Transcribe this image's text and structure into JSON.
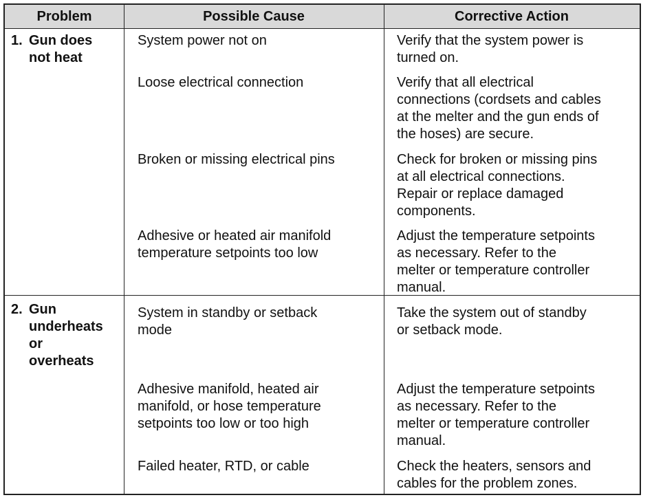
{
  "table": {
    "header": [
      "Problem",
      "Possible Cause",
      "Corrective Action"
    ],
    "rows": [
      {
        "number": "1.",
        "problem": [
          "Gun does",
          "not heat"
        ],
        "entries": [
          {
            "cause": [
              "System power not on"
            ],
            "action": [
              "Verify that the system power is",
              "turned on."
            ]
          },
          {
            "cause": [
              "Loose electrical connection"
            ],
            "action": [
              "Verify that all electrical",
              "connections (cordsets and cables",
              "at the melter and the gun ends of",
              "the hoses) are secure."
            ]
          },
          {
            "cause": [
              "Broken or missing electrical pins"
            ],
            "action": [
              "Check for broken or missing pins",
              "at all electrical connections.",
              "Repair or replace damaged",
              "components."
            ]
          },
          {
            "cause": [
              "Adhesive or heated air manifold",
              "temperature setpoints too low"
            ],
            "action": [
              "Adjust the temperature setpoints",
              "as necessary.  Refer to the",
              "melter or temperature controller",
              "manual."
            ]
          }
        ]
      },
      {
        "number": "2.",
        "problem": [
          "Gun",
          "underheats",
          "or",
          "overheats"
        ],
        "entries": [
          {
            "cause": [
              "System in standby or setback",
              "mode"
            ],
            "action": [
              "Take the system out of standby",
              "or setback mode."
            ]
          },
          {
            "cause": [
              "Adhesive manifold, heated air",
              "manifold, or hose temperature",
              "setpoints too low or too high"
            ],
            "action": [
              "Adjust the temperature setpoints",
              "as necessary.  Refer to the",
              "melter or temperature controller",
              "manual."
            ]
          },
          {
            "cause": [
              "Failed heater, RTD, or cable"
            ],
            "action": [
              "Check the heaters, sensors and",
              "cables for the problem zones."
            ]
          }
        ]
      }
    ]
  }
}
